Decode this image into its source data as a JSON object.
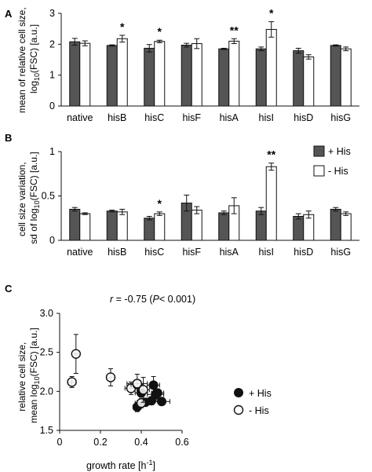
{
  "colors": {
    "plus_his": "#555555",
    "minus_his": "#ffffff",
    "stroke": "#111111"
  },
  "panels": {
    "a": "A",
    "b": "B",
    "c": "C"
  },
  "legend_bars": {
    "plus": "+ His",
    "minus": "- His"
  },
  "legend_scatter": {
    "plus": "+ His",
    "minus": "- His"
  },
  "chart_data": [
    {
      "type": "bar",
      "panel": "A",
      "ylabel_line1": "mean of relative cell size,",
      "ylabel_line2_pre": "log",
      "ylabel_line2_sub": "10",
      "ylabel_line2_post": "(FSC) [a.u.]",
      "ylim": [
        0,
        3
      ],
      "yticks": [
        "0",
        "1",
        "2",
        "3"
      ],
      "categories": [
        "native",
        "hisB",
        "hisC",
        "hisF",
        "hisA",
        "hisI",
        "hisD",
        "hisG"
      ],
      "series": [
        {
          "name": "+ His",
          "values": [
            2.08,
            1.96,
            1.87,
            1.97,
            1.85,
            1.85,
            1.79,
            1.96
          ],
          "errors": [
            0.11,
            0.02,
            0.12,
            0.06,
            0.02,
            0.06,
            0.08,
            0.02
          ]
        },
        {
          "name": "- His",
          "values": [
            2.03,
            2.18,
            2.09,
            2.02,
            2.1,
            2.48,
            1.59,
            1.85
          ],
          "errors": [
            0.08,
            0.11,
            0.04,
            0.16,
            0.08,
            0.25,
            0.07,
            0.06
          ]
        }
      ],
      "significance": [
        "",
        "*",
        "*",
        "",
        "**",
        "*",
        "",
        ""
      ]
    },
    {
      "type": "bar",
      "panel": "B",
      "ylabel_line1": "cell size variation,",
      "ylabel_line2_pre": "sd of log",
      "ylabel_line2_sub": "10",
      "ylabel_line2_post": "(FSC) [a.u.]",
      "ylim": [
        0,
        1
      ],
      "yticks": [
        "0",
        "0.5",
        "1"
      ],
      "categories": [
        "native",
        "hisB",
        "hisC",
        "hisF",
        "hisA",
        "hisI",
        "hisD",
        "hisG"
      ],
      "series": [
        {
          "name": "+ His",
          "values": [
            0.35,
            0.33,
            0.25,
            0.42,
            0.31,
            0.33,
            0.27,
            0.35
          ],
          "errors": [
            0.02,
            0.01,
            0.02,
            0.09,
            0.02,
            0.04,
            0.03,
            0.02
          ]
        },
        {
          "name": "- His",
          "values": [
            0.3,
            0.32,
            0.3,
            0.34,
            0.39,
            0.83,
            0.29,
            0.3
          ],
          "errors": [
            0.01,
            0.03,
            0.02,
            0.04,
            0.09,
            0.04,
            0.04,
            0.02
          ]
        }
      ],
      "significance": [
        "",
        "",
        "*",
        "",
        "",
        "**",
        "",
        ""
      ]
    },
    {
      "type": "scatter",
      "panel": "C",
      "annotation": {
        "r_text": "r",
        "eq_text": " = -0.75 (",
        "p_text": "P",
        "tail_text": "< 0.001)"
      },
      "xlabel": "growth rate [h",
      "xlabel_sup": "-1",
      "xlabel_end": "]",
      "ylabel_line1": "relative cell size,",
      "ylabel_line2_pre": "mean log",
      "ylabel_line2_sub": "10",
      "ylabel_line2_post": "(FSC) [a.u.]",
      "xlim": [
        0,
        0.6
      ],
      "ylim": [
        1.5,
        3.0
      ],
      "xticks": [
        "0",
        "0.2",
        "0.4",
        "0.6"
      ],
      "yticks": [
        "1.5",
        "2.0",
        "2.5",
        "3.0"
      ],
      "series": [
        {
          "name": "+ His",
          "points": [
            {
              "x": 0.38,
              "y": 1.8,
              "xerr": 0.02,
              "yerr": 0.06
            },
            {
              "x": 0.4,
              "y": 1.98,
              "xerr": 0.03,
              "yerr": 0.05
            },
            {
              "x": 0.42,
              "y": 1.86,
              "xerr": 0.04,
              "yerr": 0.05
            },
            {
              "x": 0.45,
              "y": 1.88,
              "xerr": 0.03,
              "yerr": 0.05
            },
            {
              "x": 0.46,
              "y": 2.08,
              "xerr": 0.03,
              "yerr": 0.11
            },
            {
              "x": 0.47,
              "y": 1.96,
              "xerr": 0.04,
              "yerr": 0.06
            },
            {
              "x": 0.48,
              "y": 1.98,
              "xerr": 0.03,
              "yerr": 0.05
            },
            {
              "x": 0.5,
              "y": 1.87,
              "xerr": 0.04,
              "yerr": 0.04
            }
          ]
        },
        {
          "name": "- His",
          "points": [
            {
              "x": 0.06,
              "y": 2.12,
              "xerr": 0.02,
              "yerr": 0.07
            },
            {
              "x": 0.08,
              "y": 2.48,
              "xerr": 0.01,
              "yerr": 0.25
            },
            {
              "x": 0.25,
              "y": 2.18,
              "xerr": 0.02,
              "yerr": 0.11
            },
            {
              "x": 0.35,
              "y": 2.04,
              "xerr": 0.03,
              "yerr": 0.08
            },
            {
              "x": 0.38,
              "y": 2.09,
              "xerr": 0.03,
              "yerr": 0.04
            },
            {
              "x": 0.38,
              "y": 2.1,
              "xerr": 0.05,
              "yerr": 0.12
            },
            {
              "x": 0.4,
              "y": 1.85,
              "xerr": 0.03,
              "yerr": 0.06
            },
            {
              "x": 0.41,
              "y": 2.02,
              "xerr": 0.03,
              "yerr": 0.16
            }
          ]
        }
      ]
    }
  ]
}
